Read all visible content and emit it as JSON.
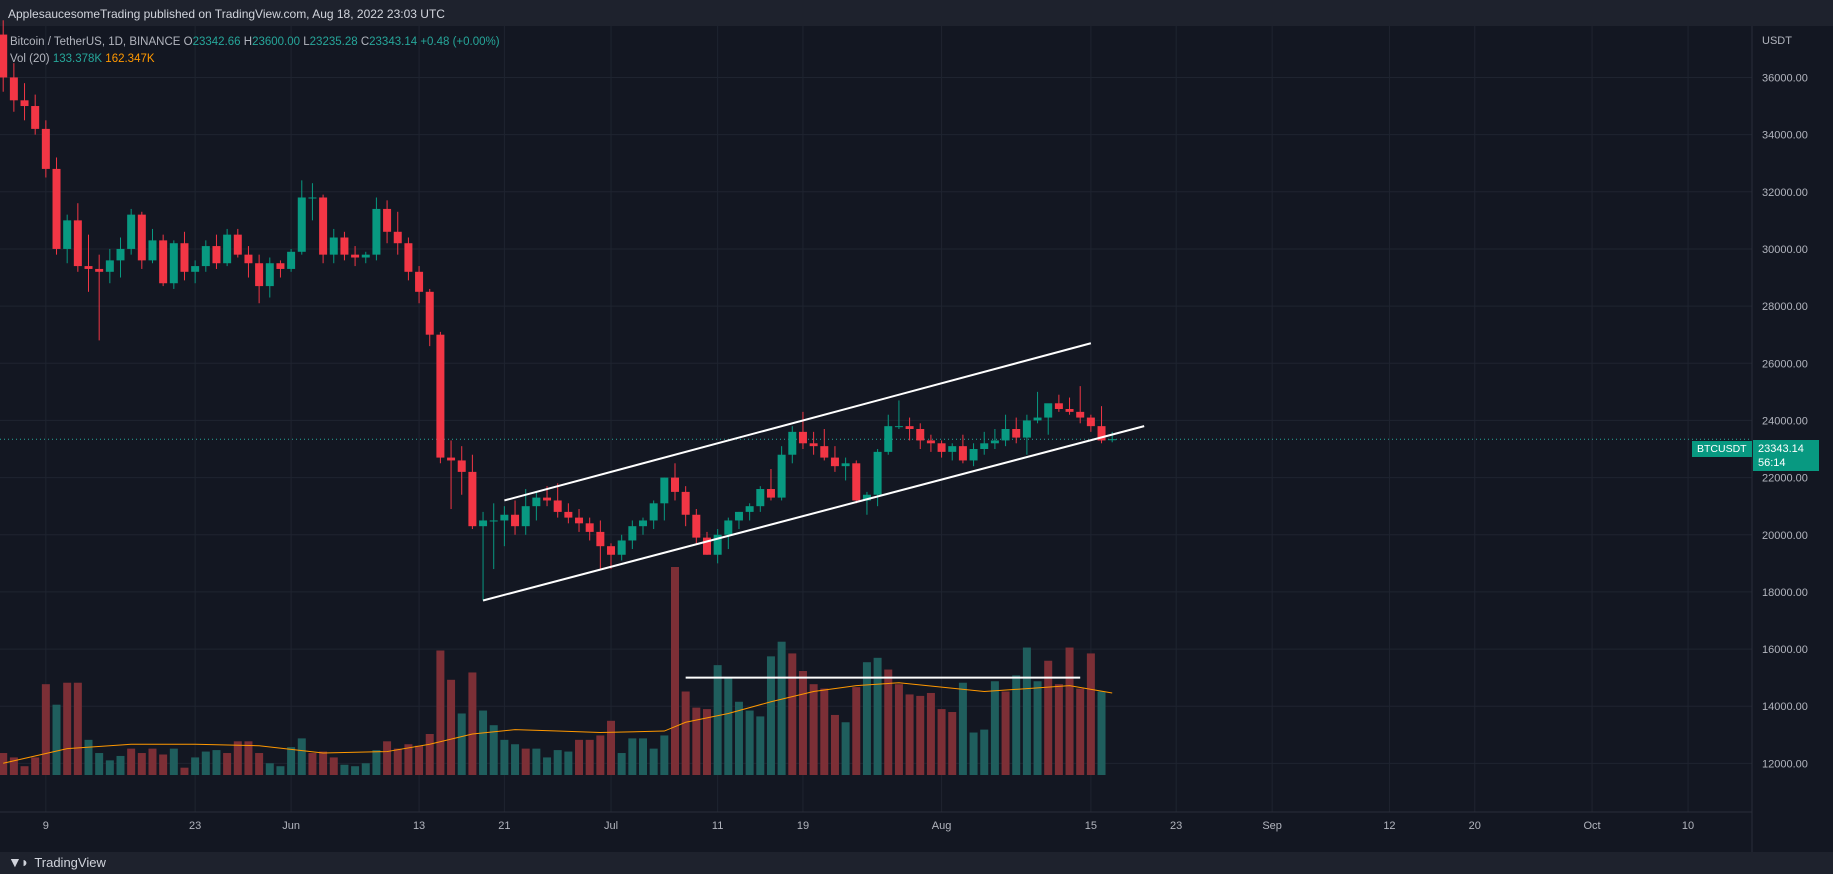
{
  "header": {
    "publish_text": "ApplesaucesomeTrading published on TradingView.com, Aug 18, 2022 23:03 UTC"
  },
  "legend": {
    "symbol": "Bitcoin / TetherUS, 1D, BINANCE",
    "o_label": "O",
    "o_val": "23342.66",
    "h_label": "H",
    "h_val": "23600.00",
    "l_label": "L",
    "l_val": "23235.28",
    "c_label": "C",
    "c_val": "23343.14",
    "change": "+0.48 (+0.00%)",
    "vol_label": "Vol (20)",
    "vol_val": "133.378K",
    "vol_ma_val": "162.347K"
  },
  "price_tag": {
    "symbol": "BTCUSDT",
    "price": "23343.14",
    "countdown": "56:14"
  },
  "footer": {
    "brand": "TradingView"
  },
  "colors": {
    "background": "#131722",
    "up": "#089981",
    "down": "#f23645",
    "vol_up": "#1f5e5d",
    "vol_down": "#7c2f36",
    "vol_ma": "#ff9800",
    "grid": "#1f2430",
    "trendline": "#ffffff"
  },
  "chart_data": {
    "type": "candlestick",
    "currency_label": "USDT",
    "y_ticks": [
      "12000.00",
      "14000.00",
      "16000.00",
      "18000.00",
      "20000.00",
      "22000.00",
      "24000.00",
      "26000.00",
      "28000.00",
      "30000.00",
      "32000.00",
      "34000.00",
      "36000.00"
    ],
    "ylim": [
      10300,
      37800
    ],
    "x_tick_labels": [
      {
        "day": 0,
        "label": "9"
      },
      {
        "day": 14,
        "label": "23"
      },
      {
        "day": 23,
        "label": "Jun"
      },
      {
        "day": 35,
        "label": "13"
      },
      {
        "day": 43,
        "label": "21"
      },
      {
        "day": 53,
        "label": "Jul"
      },
      {
        "day": 63,
        "label": "11"
      },
      {
        "day": 71,
        "label": "19"
      },
      {
        "day": 84,
        "label": "Aug"
      },
      {
        "day": 98,
        "label": "15"
      },
      {
        "day": 106,
        "label": "23"
      },
      {
        "day": 115,
        "label": "Sep"
      },
      {
        "day": 126,
        "label": "12"
      },
      {
        "day": 134,
        "label": "20"
      },
      {
        "day": 145,
        "label": "Oct"
      },
      {
        "day": 154,
        "label": "10"
      }
    ],
    "x_range_days": [
      -4.3,
      160
    ],
    "candles": [
      [
        -4,
        37500,
        38000,
        35500,
        36000
      ],
      [
        -3,
        36000,
        36500,
        34800,
        35200
      ],
      [
        -2,
        35200,
        35800,
        34500,
        35000
      ],
      [
        -1,
        35000,
        35400,
        34000,
        34200
      ],
      [
        0,
        34200,
        34500,
        32500,
        32800
      ],
      [
        1,
        32800,
        33200,
        29800,
        30000
      ],
      [
        2,
        30000,
        31200,
        29500,
        31000
      ],
      [
        3,
        31000,
        31600,
        29200,
        29400
      ],
      [
        4,
        29400,
        30500,
        28500,
        29300
      ],
      [
        5,
        29300,
        29800,
        26800,
        29200
      ],
      [
        6,
        29200,
        30000,
        28800,
        29600
      ],
      [
        7,
        29600,
        30400,
        29000,
        30000
      ],
      [
        8,
        30000,
        31400,
        29800,
        31200
      ],
      [
        9,
        31200,
        31300,
        29300,
        29600
      ],
      [
        10,
        29600,
        30700,
        29500,
        30300
      ],
      [
        11,
        30300,
        30500,
        28700,
        28800
      ],
      [
        12,
        28800,
        30300,
        28600,
        30200
      ],
      [
        13,
        30200,
        30600,
        28900,
        29200
      ],
      [
        14,
        29200,
        29600,
        28800,
        29400
      ],
      [
        15,
        29400,
        30300,
        29200,
        30100
      ],
      [
        16,
        30100,
        30500,
        29300,
        29500
      ],
      [
        17,
        29500,
        30700,
        29400,
        30500
      ],
      [
        18,
        30500,
        30700,
        29700,
        29800
      ],
      [
        19,
        29800,
        30100,
        29000,
        29500
      ],
      [
        20,
        29500,
        29800,
        28100,
        28700
      ],
      [
        21,
        28700,
        29700,
        28300,
        29500
      ],
      [
        22,
        29500,
        29600,
        29000,
        29300
      ],
      [
        23,
        29300,
        30000,
        29200,
        29900
      ],
      [
        24,
        29900,
        32400,
        29800,
        31800
      ],
      [
        25,
        31800,
        32300,
        31000,
        31800
      ],
      [
        26,
        31800,
        31900,
        29500,
        29800
      ],
      [
        27,
        29800,
        30700,
        29500,
        30400
      ],
      [
        28,
        30400,
        30600,
        29600,
        29800
      ],
      [
        29,
        29800,
        30100,
        29400,
        29700
      ],
      [
        30,
        29700,
        29900,
        29500,
        29800
      ],
      [
        31,
        29800,
        31800,
        29600,
        31400
      ],
      [
        32,
        31400,
        31700,
        30200,
        30600
      ],
      [
        33,
        30600,
        31300,
        29800,
        30200
      ],
      [
        34,
        30200,
        30400,
        28900,
        29200
      ],
      [
        35,
        29200,
        29400,
        28100,
        28500
      ],
      [
        36,
        28500,
        28600,
        26600,
        27000
      ],
      [
        37,
        27000,
        27100,
        22500,
        22700
      ],
      [
        38,
        22700,
        23300,
        20900,
        22600
      ],
      [
        39,
        22600,
        23100,
        21400,
        22200
      ],
      [
        40,
        22200,
        22800,
        20200,
        20300
      ],
      [
        41,
        20300,
        20800,
        17700,
        20500
      ],
      [
        42,
        20500,
        21100,
        18800,
        20500
      ],
      [
        43,
        20500,
        21000,
        19600,
        20700
      ],
      [
        44,
        20700,
        21200,
        20000,
        20300
      ],
      [
        45,
        20300,
        21600,
        20000,
        21000
      ],
      [
        46,
        21000,
        21500,
        20500,
        21300
      ],
      [
        47,
        21300,
        21700,
        21000,
        21200
      ],
      [
        48,
        21200,
        21800,
        20600,
        20800
      ],
      [
        49,
        20800,
        21100,
        20400,
        20600
      ],
      [
        50,
        20600,
        20900,
        20100,
        20400
      ],
      [
        51,
        20400,
        20600,
        19800,
        20100
      ],
      [
        52,
        20100,
        20500,
        18800,
        19600
      ],
      [
        53,
        19600,
        19700,
        18800,
        19300
      ],
      [
        54,
        19300,
        20000,
        19100,
        19800
      ],
      [
        55,
        19800,
        20500,
        19500,
        20300
      ],
      [
        56,
        20300,
        20600,
        20000,
        20500
      ],
      [
        57,
        20500,
        21200,
        20200,
        21100
      ],
      [
        58,
        21100,
        22000,
        20500,
        22000
      ],
      [
        59,
        22000,
        22500,
        21200,
        21500
      ],
      [
        60,
        21500,
        21700,
        20300,
        20700
      ],
      [
        61,
        20700,
        20900,
        19700,
        19900
      ],
      [
        62,
        19900,
        20100,
        19300,
        19300
      ],
      [
        63,
        19300,
        20200,
        19000,
        20000
      ],
      [
        64,
        20000,
        20600,
        19500,
        20500
      ],
      [
        65,
        20500,
        20800,
        20200,
        20800
      ],
      [
        66,
        20800,
        21100,
        20500,
        21000
      ],
      [
        67,
        21000,
        21700,
        20800,
        21600
      ],
      [
        68,
        21600,
        22300,
        21200,
        21300
      ],
      [
        69,
        21300,
        23100,
        21200,
        22800
      ],
      [
        70,
        22800,
        23800,
        22500,
        23600
      ],
      [
        71,
        23600,
        24300,
        23000,
        23200
      ],
      [
        72,
        23200,
        23600,
        22800,
        23100
      ],
      [
        73,
        23100,
        23700,
        22600,
        22700
      ],
      [
        74,
        22700,
        23100,
        22200,
        22400
      ],
      [
        75,
        22400,
        22700,
        21900,
        22500
      ],
      [
        76,
        22500,
        22600,
        21100,
        21200
      ],
      [
        77,
        21200,
        21500,
        20700,
        21400
      ],
      [
        78,
        21400,
        23000,
        21000,
        22900
      ],
      [
        79,
        22900,
        24200,
        22800,
        23800
      ],
      [
        80,
        23800,
        24700,
        23700,
        23800
      ],
      [
        81,
        23800,
        24100,
        23300,
        23700
      ],
      [
        82,
        23700,
        23900,
        23000,
        23300
      ],
      [
        83,
        23300,
        23500,
        22900,
        23200
      ],
      [
        84,
        23200,
        23300,
        22700,
        22900
      ],
      [
        85,
        22900,
        23200,
        22600,
        23100
      ],
      [
        86,
        23100,
        23500,
        22500,
        22600
      ],
      [
        87,
        22600,
        23200,
        22400,
        23000
      ],
      [
        88,
        23000,
        23600,
        22800,
        23200
      ],
      [
        89,
        23200,
        23700,
        23000,
        23300
      ],
      [
        90,
        23300,
        24200,
        23100,
        23700
      ],
      [
        91,
        23700,
        24100,
        23200,
        23400
      ],
      [
        92,
        23400,
        24200,
        22800,
        24000
      ],
      [
        93,
        24000,
        25000,
        23900,
        24100
      ],
      [
        94,
        24100,
        24500,
        23500,
        24600
      ],
      [
        95,
        24600,
        24900,
        24300,
        24400
      ],
      [
        96,
        24400,
        24800,
        24200,
        24300
      ],
      [
        97,
        24300,
        25200,
        23900,
        24100
      ],
      [
        98,
        24100,
        24200,
        23600,
        23800
      ],
      [
        99,
        23800,
        24500,
        23200,
        23300
      ],
      [
        100,
        23342.66,
        23600,
        23235.28,
        23343.14
      ]
    ],
    "volume_scale_max": 13.5,
    "volumes": [
      [
        -4,
        1.5,
        0
      ],
      [
        -3,
        1.2,
        0
      ],
      [
        -2,
        0.6,
        0
      ],
      [
        -1,
        1.2,
        0
      ],
      [
        0,
        6.2,
        0
      ],
      [
        1,
        4.8,
        1
      ],
      [
        2,
        6.3,
        0
      ],
      [
        3,
        6.3,
        0
      ],
      [
        4,
        2.4,
        1
      ],
      [
        5,
        1.5,
        1
      ],
      [
        6,
        1.0,
        1
      ],
      [
        7,
        1.3,
        1
      ],
      [
        8,
        1.8,
        0
      ],
      [
        9,
        1.5,
        0
      ],
      [
        10,
        1.8,
        0
      ],
      [
        11,
        1.4,
        0
      ],
      [
        12,
        1.8,
        1
      ],
      [
        13,
        0.5,
        0
      ],
      [
        14,
        1.2,
        1
      ],
      [
        15,
        1.6,
        1
      ],
      [
        16,
        1.7,
        1
      ],
      [
        17,
        1.5,
        0
      ],
      [
        18,
        2.3,
        0
      ],
      [
        19,
        2.3,
        0
      ],
      [
        20,
        1.5,
        0
      ],
      [
        21,
        0.8,
        1
      ],
      [
        22,
        0.6,
        1
      ],
      [
        23,
        1.9,
        1
      ],
      [
        24,
        2.5,
        1
      ],
      [
        25,
        1.5,
        0
      ],
      [
        26,
        1.6,
        0
      ],
      [
        27,
        1.2,
        0
      ],
      [
        28,
        0.7,
        1
      ],
      [
        29,
        0.6,
        1
      ],
      [
        30,
        0.8,
        1
      ],
      [
        31,
        1.7,
        1
      ],
      [
        32,
        2.3,
        0
      ],
      [
        33,
        1.8,
        0
      ],
      [
        34,
        2.1,
        0
      ],
      [
        35,
        2.0,
        0
      ],
      [
        36,
        2.8,
        0
      ],
      [
        37,
        8.5,
        0
      ],
      [
        38,
        6.5,
        0
      ],
      [
        39,
        4.2,
        1
      ],
      [
        40,
        7.0,
        0
      ],
      [
        41,
        4.4,
        1
      ],
      [
        42,
        3.4,
        1
      ],
      [
        43,
        2.4,
        1
      ],
      [
        44,
        2.1,
        1
      ],
      [
        45,
        1.8,
        0
      ],
      [
        46,
        1.8,
        1
      ],
      [
        47,
        1.2,
        1
      ],
      [
        48,
        1.7,
        1
      ],
      [
        49,
        1.6,
        1
      ],
      [
        50,
        2.4,
        0
      ],
      [
        51,
        2.4,
        0
      ],
      [
        52,
        2.7,
        0
      ],
      [
        53,
        3.7,
        0
      ],
      [
        54,
        1.5,
        1
      ],
      [
        55,
        2.5,
        1
      ],
      [
        56,
        2.5,
        1
      ],
      [
        57,
        1.8,
        1
      ],
      [
        58,
        2.7,
        1
      ],
      [
        59,
        14.2,
        0
      ],
      [
        60,
        5.7,
        0
      ],
      [
        61,
        4.6,
        0
      ],
      [
        62,
        4.5,
        0
      ],
      [
        63,
        7.5,
        1
      ],
      [
        64,
        6.6,
        1
      ],
      [
        65,
        5.0,
        1
      ],
      [
        66,
        4.4,
        1
      ],
      [
        67,
        4.0,
        1
      ],
      [
        68,
        8.1,
        1
      ],
      [
        69,
        9.1,
        1
      ],
      [
        70,
        8.3,
        0
      ],
      [
        71,
        7.1,
        0
      ],
      [
        72,
        6.2,
        0
      ],
      [
        73,
        5.9,
        0
      ],
      [
        74,
        4.1,
        0
      ],
      [
        75,
        3.6,
        1
      ],
      [
        76,
        6.0,
        0
      ],
      [
        77,
        7.7,
        1
      ],
      [
        78,
        8.0,
        1
      ],
      [
        79,
        7.2,
        0
      ],
      [
        80,
        6.2,
        0
      ],
      [
        81,
        5.5,
        0
      ],
      [
        82,
        5.4,
        0
      ],
      [
        83,
        5.6,
        0
      ],
      [
        84,
        4.5,
        0
      ],
      [
        85,
        4.3,
        0
      ],
      [
        86,
        6.3,
        1
      ],
      [
        87,
        2.9,
        1
      ],
      [
        88,
        3.1,
        1
      ],
      [
        89,
        6.4,
        1
      ],
      [
        90,
        5.7,
        0
      ],
      [
        91,
        6.8,
        1
      ],
      [
        92,
        8.7,
        1
      ],
      [
        93,
        6.4,
        1
      ],
      [
        94,
        7.8,
        0
      ],
      [
        95,
        6.2,
        0
      ],
      [
        96,
        8.7,
        0
      ],
      [
        97,
        5.9,
        0
      ],
      [
        98,
        8.3,
        0
      ],
      [
        99,
        5.7,
        1
      ]
    ],
    "volume_ma": [
      [
        -4,
        0.8
      ],
      [
        2,
        1.8
      ],
      [
        8,
        2.1
      ],
      [
        14,
        2.1
      ],
      [
        20,
        2.0
      ],
      [
        26,
        1.5
      ],
      [
        32,
        1.6
      ],
      [
        36,
        2.1
      ],
      [
        40,
        2.8
      ],
      [
        44,
        3.1
      ],
      [
        48,
        3.0
      ],
      [
        52,
        2.9
      ],
      [
        58,
        3.0
      ],
      [
        60,
        3.6
      ],
      [
        64,
        4.2
      ],
      [
        68,
        5.0
      ],
      [
        72,
        5.7
      ],
      [
        76,
        6.1
      ],
      [
        80,
        6.3
      ],
      [
        84,
        6.0
      ],
      [
        88,
        5.7
      ],
      [
        92,
        5.9
      ],
      [
        96,
        6.1
      ],
      [
        100,
        5.6
      ]
    ],
    "trendlines": [
      {
        "name": "channel-upper",
        "from": [
          43,
          21200
        ],
        "to": [
          98,
          26700
        ]
      },
      {
        "name": "channel-lower",
        "from": [
          41,
          17700
        ],
        "to": [
          103,
          23800
        ]
      },
      {
        "name": "volume-resistance",
        "from": [
          60,
          15000
        ],
        "to": [
          97,
          15000
        ]
      }
    ],
    "last_price_line": 23343.14
  }
}
